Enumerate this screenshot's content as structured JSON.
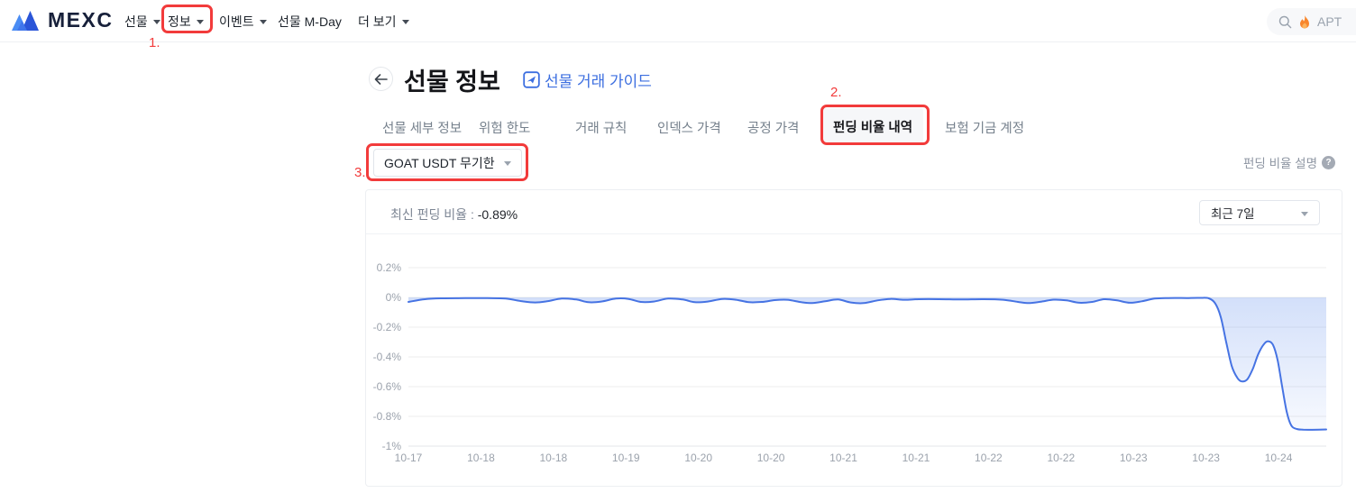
{
  "annotation_color": "#f23b3b",
  "annotations": {
    "step1": "1.",
    "step2": "2.",
    "step3": "3."
  },
  "header": {
    "brand": "MEXC",
    "nav_items": [
      {
        "label": "선물"
      },
      {
        "label": "정보"
      },
      {
        "label": "이벤트"
      },
      {
        "label": "선물 M-Day"
      },
      {
        "label": "더 보기"
      }
    ],
    "search": {
      "icon": "search-icon",
      "trend_icon": "flame-icon",
      "token": "APT"
    }
  },
  "page": {
    "title": "선물 정보",
    "guide_link": "선물 거래 가이드",
    "tabs": [
      "선물 세부 정보",
      "위험 한도",
      "거래 규칙",
      "인덱스 가격",
      "공정 가격",
      "펀딩 비율 내역",
      "보험 기금 계정"
    ],
    "active_tab": "펀딩 비율 내역",
    "pair_select": "GOAT USDT 무기한",
    "explain_link": "펀딩 비율 설명"
  },
  "panel": {
    "latest_label": "최신 펀딩 비율 : ",
    "latest_value": "-0.89%",
    "range_select": "최근 7일"
  },
  "chart_data": {
    "type": "line",
    "series_name": "펀딩 비율",
    "unit": "%",
    "ylim": [
      -1.0,
      0.2
    ],
    "grid": true,
    "line_color": "#4673e3",
    "area_top": "rgba(80,130,235,0.25)",
    "area_bottom": "rgba(80,130,235,0.02)",
    "grid_color": "#ededed",
    "axis_color": "#e3e5e9",
    "tick_color": "#9ba2ac",
    "y_ticks": [
      {
        "label": "0.2%",
        "v": 0.2
      },
      {
        "label": "0%",
        "v": 0
      },
      {
        "label": "-0.2%",
        "v": -0.2
      },
      {
        "label": "-0.4%",
        "v": -0.4
      },
      {
        "label": "-0.6%",
        "v": -0.6
      },
      {
        "label": "-0.8%",
        "v": -0.8
      },
      {
        "label": "-1%",
        "v": -1.0
      }
    ],
    "x_ticks": [
      {
        "label": "10-17",
        "t": 0
      },
      {
        "label": "10-18",
        "t": 7.9
      },
      {
        "label": "10-18",
        "t": 15.8
      },
      {
        "label": "10-19",
        "t": 23.7
      },
      {
        "label": "10-20",
        "t": 31.6
      },
      {
        "label": "10-20",
        "t": 39.5
      },
      {
        "label": "10-21",
        "t": 47.4
      },
      {
        "label": "10-21",
        "t": 55.3
      },
      {
        "label": "10-22",
        "t": 63.2
      },
      {
        "label": "10-22",
        "t": 71.1
      },
      {
        "label": "10-23",
        "t": 79.0
      },
      {
        "label": "10-23",
        "t": 86.9
      },
      {
        "label": "10-24",
        "t": 94.8
      }
    ],
    "series": [
      {
        "name": "funding_rate",
        "points": [
          [
            0,
            -0.03
          ],
          [
            1.8,
            -0.012
          ],
          [
            3.7,
            -0.006
          ],
          [
            6.2,
            -0.005
          ],
          [
            8.6,
            -0.005
          ],
          [
            10.6,
            -0.008
          ],
          [
            12.4,
            -0.026
          ],
          [
            13.8,
            -0.034
          ],
          [
            15.1,
            -0.026
          ],
          [
            16.7,
            -0.008
          ],
          [
            18.3,
            -0.014
          ],
          [
            19.6,
            -0.032
          ],
          [
            21,
            -0.028
          ],
          [
            22.6,
            -0.008
          ],
          [
            24,
            -0.01
          ],
          [
            25.3,
            -0.03
          ],
          [
            26.7,
            -0.028
          ],
          [
            28.3,
            -0.008
          ],
          [
            29.9,
            -0.014
          ],
          [
            31.2,
            -0.032
          ],
          [
            32.6,
            -0.028
          ],
          [
            34.2,
            -0.01
          ],
          [
            35.7,
            -0.016
          ],
          [
            37.1,
            -0.032
          ],
          [
            38.6,
            -0.03
          ],
          [
            39.9,
            -0.018
          ],
          [
            41.3,
            -0.016
          ],
          [
            42.8,
            -0.032
          ],
          [
            44,
            -0.038
          ],
          [
            45.4,
            -0.026
          ],
          [
            46.8,
            -0.014
          ],
          [
            48.2,
            -0.034
          ],
          [
            49.6,
            -0.038
          ],
          [
            51.1,
            -0.02
          ],
          [
            52.5,
            -0.01
          ],
          [
            54,
            -0.016
          ],
          [
            55.6,
            -0.012
          ],
          [
            57.8,
            -0.012
          ],
          [
            60.2,
            -0.014
          ],
          [
            62.7,
            -0.012
          ],
          [
            64.8,
            -0.016
          ],
          [
            66.4,
            -0.03
          ],
          [
            67.6,
            -0.038
          ],
          [
            69,
            -0.028
          ],
          [
            70.3,
            -0.015
          ],
          [
            71.7,
            -0.02
          ],
          [
            73.1,
            -0.036
          ],
          [
            74.5,
            -0.03
          ],
          [
            75.8,
            -0.012
          ],
          [
            77.2,
            -0.02
          ],
          [
            78.6,
            -0.036
          ],
          [
            79.9,
            -0.026
          ],
          [
            81.3,
            -0.008
          ],
          [
            82.8,
            -0.004
          ],
          [
            84.8,
            -0.004
          ],
          [
            86.2,
            -0.003
          ],
          [
            87.2,
            -0.006
          ],
          [
            87.9,
            -0.04
          ],
          [
            88.5,
            -0.13
          ],
          [
            89.1,
            -0.3
          ],
          [
            89.7,
            -0.46
          ],
          [
            90.3,
            -0.54
          ],
          [
            90.8,
            -0.565
          ],
          [
            91.4,
            -0.55
          ],
          [
            92,
            -0.48
          ],
          [
            92.6,
            -0.38
          ],
          [
            93.2,
            -0.315
          ],
          [
            93.7,
            -0.295
          ],
          [
            94.2,
            -0.32
          ],
          [
            94.7,
            -0.42
          ],
          [
            95.2,
            -0.6
          ],
          [
            95.7,
            -0.77
          ],
          [
            96.2,
            -0.862
          ],
          [
            96.8,
            -0.885
          ],
          [
            97.5,
            -0.889
          ],
          [
            98.5,
            -0.89
          ],
          [
            100,
            -0.888
          ]
        ]
      }
    ]
  }
}
